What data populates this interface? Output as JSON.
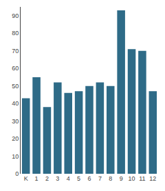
{
  "chart_data": {
    "type": "bar",
    "categories": [
      "K",
      "1",
      "2",
      "3",
      "4",
      "5",
      "6",
      "7",
      "8",
      "9",
      "10",
      "11",
      "12"
    ],
    "values": [
      43,
      55,
      38,
      52,
      46,
      47,
      50,
      52,
      50,
      93,
      71,
      70,
      47
    ],
    "color": "#2e6b87",
    "ylim": [
      0,
      95
    ],
    "yticks": [
      0,
      10,
      20,
      30,
      40,
      50,
      60,
      70,
      80,
      90
    ],
    "grid": false
  }
}
